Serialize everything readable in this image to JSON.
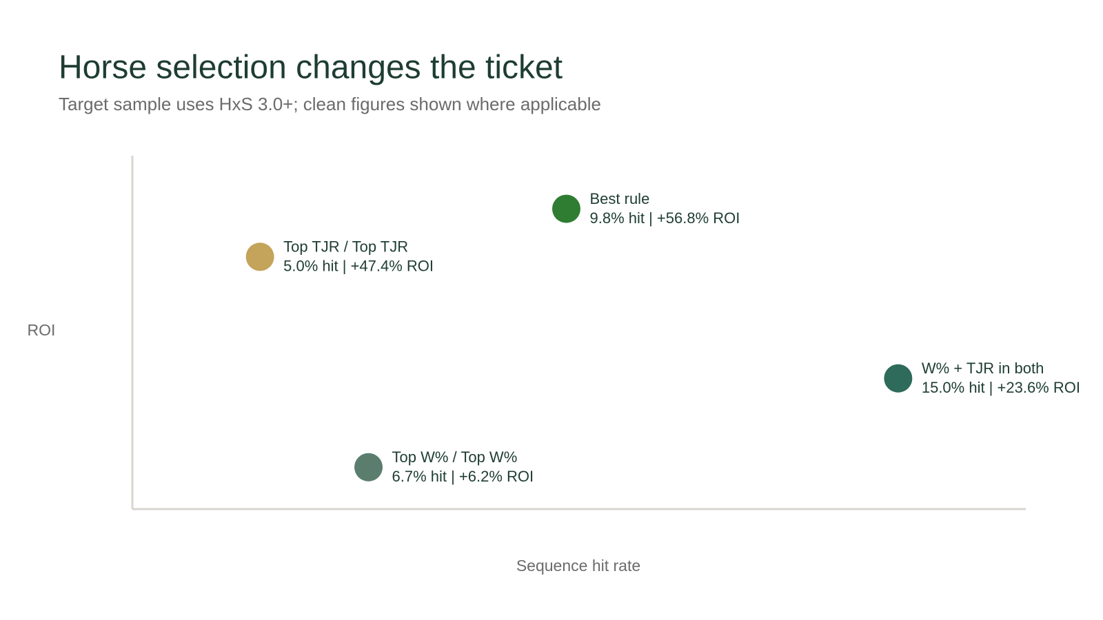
{
  "chart_data": {
    "type": "scatter",
    "title": "Horse selection changes the ticket",
    "subtitle": "Target sample uses HxS 3.0+; clean figures shown where applicable",
    "x_label": "Sequence hit rate",
    "y_label": "ROI",
    "xlim": [
      3,
      17
    ],
    "ylim": [
      -2,
      67.2
    ],
    "series": [
      {
        "name": "Top TJR / Top TJR",
        "color": "#c4a45a",
        "x": [
          5.0
        ],
        "values": [
          47.4
        ],
        "value_labels": [
          "5.0% hit | +47.4% ROI"
        ]
      },
      {
        "name": "Best rule",
        "color": "#2e7d32",
        "x": [
          9.8
        ],
        "values": [
          56.8
        ],
        "value_labels": [
          "9.8% hit | +56.8% ROI"
        ]
      },
      {
        "name": "W% + TJR in both",
        "color": "#2f6b5a",
        "x": [
          15.0
        ],
        "values": [
          23.6
        ],
        "value_labels": [
          "15.0% hit | +23.6% ROI"
        ]
      },
      {
        "name": "Top W% / Top W%",
        "color": "#5a7d6e",
        "x": [
          6.7
        ],
        "values": [
          6.2
        ],
        "value_labels": [
          "6.7% hit | +6.2% ROI"
        ]
      }
    ]
  }
}
